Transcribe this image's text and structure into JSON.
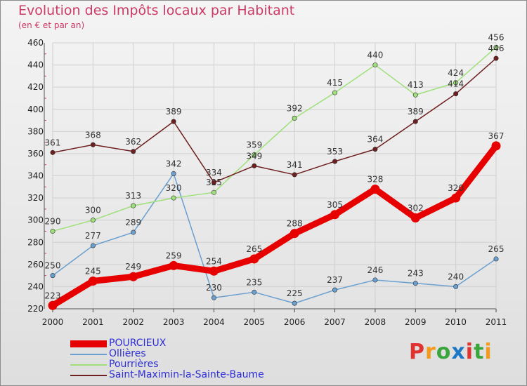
{
  "header": {
    "title": "Evolution des Impôts locaux par Habitant",
    "subtitle": "(en € et par an)"
  },
  "logo": {
    "text": "Proxiti",
    "colors": [
      "#e0322f",
      "#f39a1c",
      "#3aa53d",
      "#1e77c4",
      "#e0322f",
      "#3aa53d",
      "#f39a1c"
    ]
  },
  "chart_data": {
    "type": "line",
    "x": [
      "2000",
      "2001",
      "2002",
      "2003",
      "2004",
      "2005",
      "2006",
      "2007",
      "2008",
      "2009",
      "2010",
      "2011"
    ],
    "ylim": [
      220,
      460
    ],
    "yticks": [
      220,
      240,
      260,
      280,
      300,
      320,
      340,
      360,
      380,
      400,
      420,
      440,
      460
    ],
    "grid": true,
    "legend_position": "bottom-left",
    "series": [
      {
        "name": "POURCIEUX",
        "color": "#e60000",
        "bold": true,
        "values": [
          223,
          245,
          249,
          259,
          254,
          265,
          288,
          305,
          328,
          302,
          320,
          367
        ]
      },
      {
        "name": "Ollières",
        "color": "#6a9fd0",
        "bold": false,
        "values": [
          250,
          277,
          289,
          342,
          230,
          235,
          225,
          237,
          246,
          243,
          240,
          265
        ]
      },
      {
        "name": "Pourrières",
        "color": "#9ee07a",
        "bold": false,
        "values": [
          290,
          300,
          313,
          320,
          325,
          359,
          392,
          415,
          440,
          413,
          424,
          456
        ]
      },
      {
        "name": "Saint-Maximin-la-Sainte-Baume",
        "color": "#6e1f1f",
        "bold": false,
        "values": [
          361,
          368,
          362,
          389,
          334,
          349,
          341,
          353,
          364,
          389,
          414,
          446
        ]
      }
    ]
  }
}
